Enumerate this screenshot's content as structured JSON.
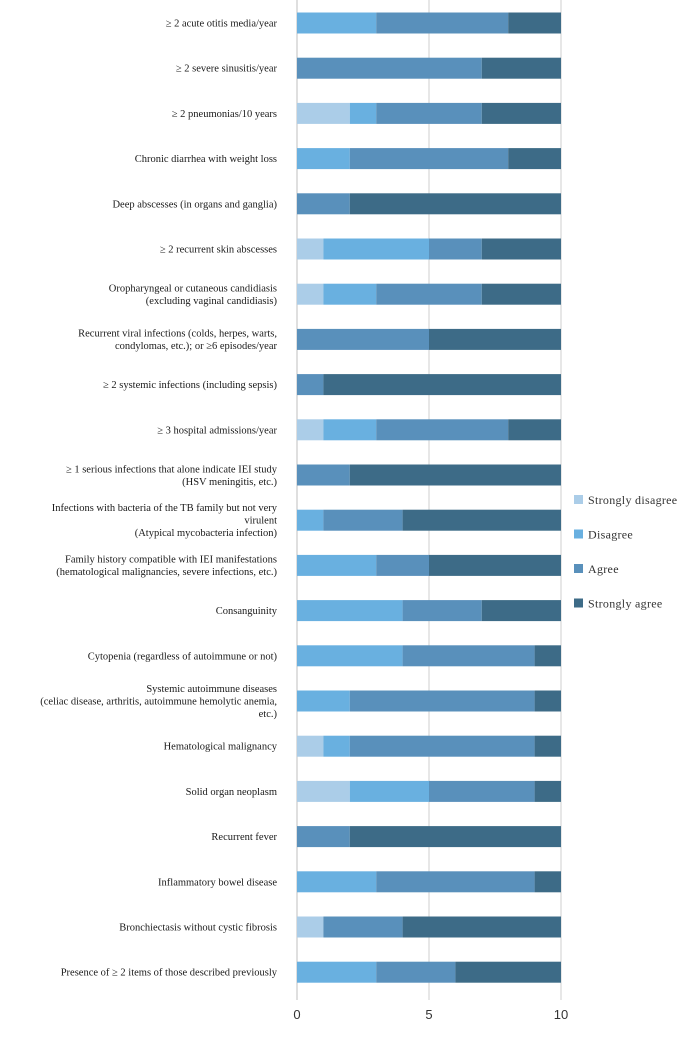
{
  "chart_data": {
    "type": "bar",
    "orientation": "horizontal",
    "stacked": true,
    "categories": [
      [
        "≥ 2 acute otitis media/year"
      ],
      [
        "≥ 2 severe sinusitis/year"
      ],
      [
        "≥ 2 pneumonias/10 years"
      ],
      [
        "Chronic diarrhea with weight loss"
      ],
      [
        "Deep abscesses (in organs and ganglia)"
      ],
      [
        "≥ 2 recurrent skin abscesses"
      ],
      [
        "Oropharyngeal or cutaneous candidiasis",
        "(excluding vaginal candidiasis)"
      ],
      [
        "Recurrent viral infections (colds, herpes, warts,",
        "condylomas, etc.); or ≥6 episodes/year"
      ],
      [
        "≥ 2 systemic infections (including sepsis)"
      ],
      [
        "≥ 3 hospital admissions/year"
      ],
      [
        "≥ 1 serious infections that alone indicate IEI study",
        "(HSV meningitis, etc.)"
      ],
      [
        "Infections with bacteria of the TB family but not very",
        "virulent",
        "(Atypical mycobacteria infection)"
      ],
      [
        "Family history compatible with IEI manifestations",
        "(hematological malignancies, severe infections, etc.)"
      ],
      [
        "Consanguinity"
      ],
      [
        "Cytopenia (regardless of autoimmune or not)"
      ],
      [
        "Systemic autoimmune diseases",
        "(celiac disease, arthritis, autoimmune hemolytic anemia,",
        "etc.)"
      ],
      [
        "Hematological malignancy"
      ],
      [
        "Solid organ neoplasm"
      ],
      [
        "Recurrent fever"
      ],
      [
        "Inflammatory bowel disease"
      ],
      [
        "Bronchiectasis without cystic fibrosis"
      ],
      [
        "Presence of ≥ 2 items of those described previously"
      ]
    ],
    "series": [
      {
        "name": "Strongly disagree",
        "color": "#abcde8",
        "values": [
          0,
          0,
          2,
          0,
          0,
          1,
          1,
          0,
          0,
          1,
          0,
          0,
          0,
          0,
          0,
          0,
          1,
          2,
          0,
          0,
          1,
          0
        ]
      },
      {
        "name": "Disagree",
        "color": "#69b0e0",
        "values": [
          3,
          0,
          1,
          2,
          0,
          4,
          2,
          0,
          0,
          2,
          0,
          1,
          3,
          4,
          4,
          2,
          1,
          3,
          0,
          3,
          0,
          3
        ]
      },
      {
        "name": "Agree",
        "color": "#5990bb",
        "values": [
          5,
          7,
          4,
          6,
          2,
          2,
          4,
          5,
          1,
          5,
          2,
          3,
          2,
          3,
          5,
          7,
          7,
          4,
          2,
          6,
          3,
          3
        ]
      },
      {
        "name": "Strongly agree",
        "color": "#3d6b87",
        "values": [
          2,
          3,
          3,
          2,
          8,
          3,
          3,
          5,
          9,
          2,
          8,
          6,
          5,
          3,
          1,
          1,
          1,
          1,
          8,
          1,
          6,
          4
        ]
      }
    ],
    "xlim": [
      0,
      10
    ],
    "xticks": [
      0,
      5,
      10
    ],
    "xtick_labels": [
      "0",
      "5",
      "10"
    ],
    "grid": "vertical",
    "legend_position": "right"
  }
}
